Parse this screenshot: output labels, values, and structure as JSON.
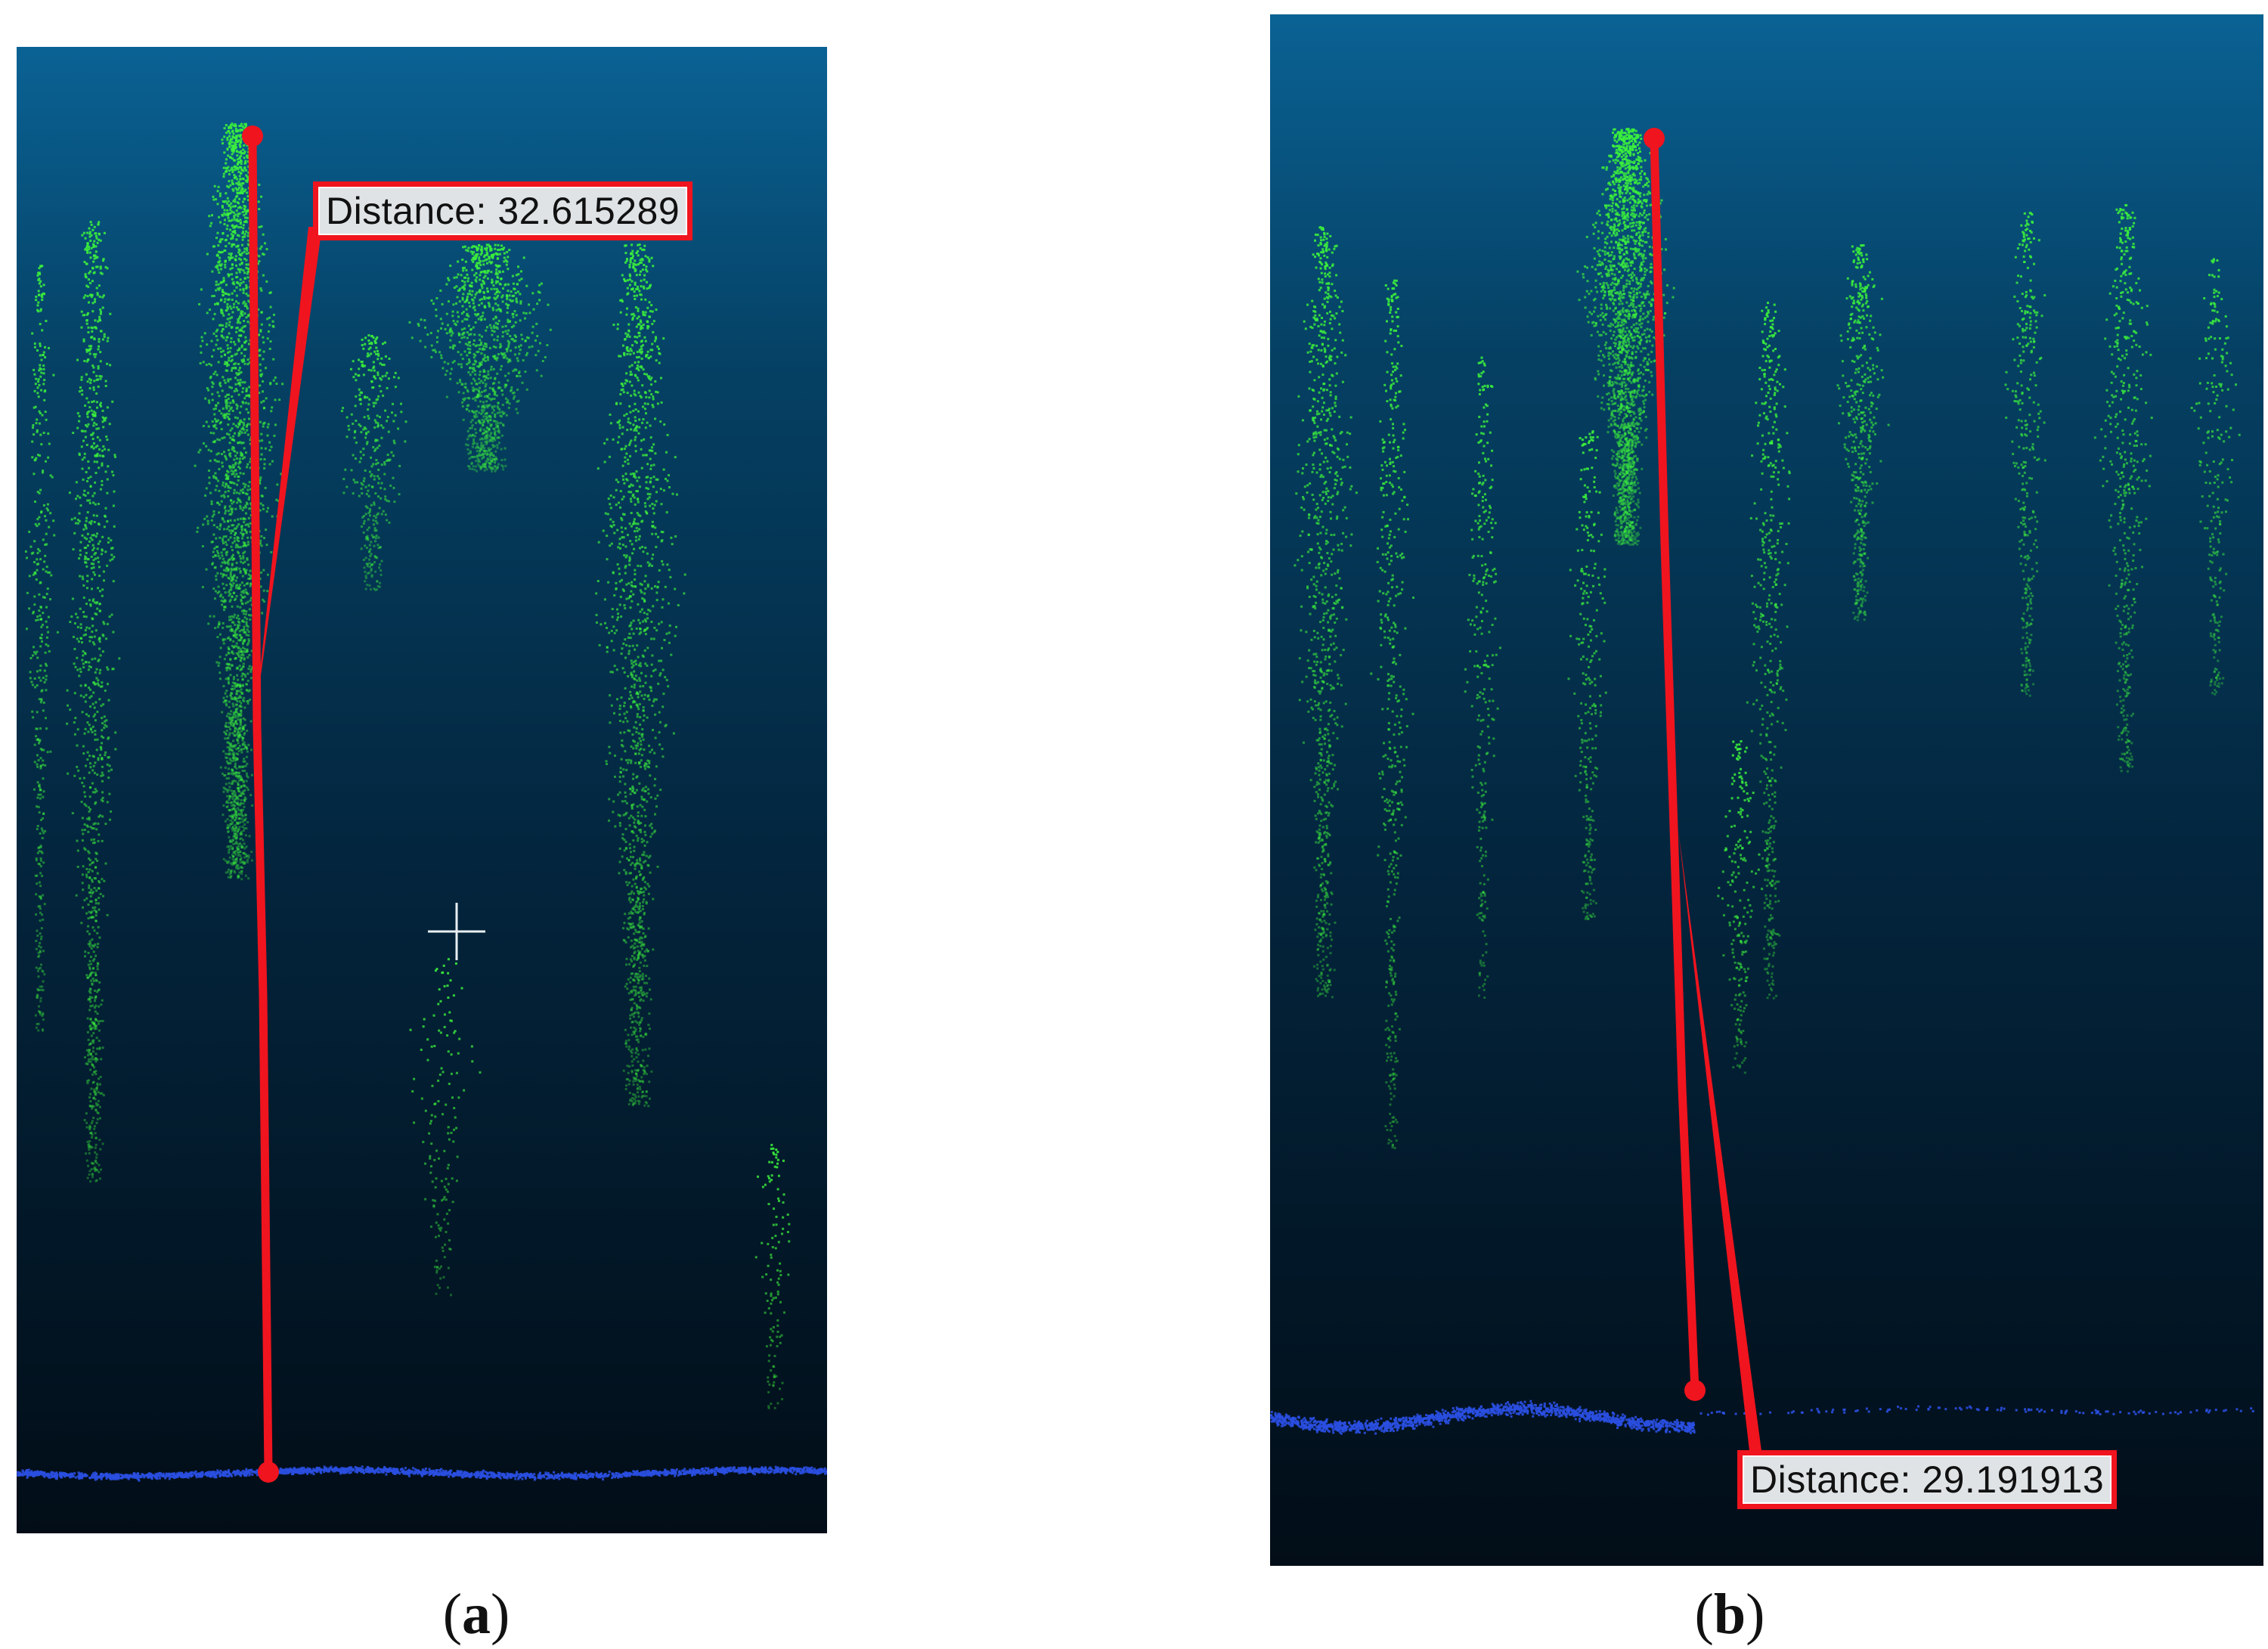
{
  "panels": [
    {
      "id": "a",
      "distance_label": "Distance: 32.615289",
      "caption_letter": "a",
      "has_crosshair": true
    },
    {
      "id": "b",
      "distance_label": "Distance: 29.191913",
      "caption_letter": "b",
      "has_crosshair": false
    }
  ],
  "colors": {
    "background_top": "#0a6294",
    "background_bottom": "#020d17",
    "vegetation_points": "#3cf03c",
    "ground_points": "#2a4fe0",
    "measure_line": "#f0141e",
    "label_background": "#dfe3e6"
  },
  "caption_parens": {
    "open": "(",
    "close": ")"
  }
}
